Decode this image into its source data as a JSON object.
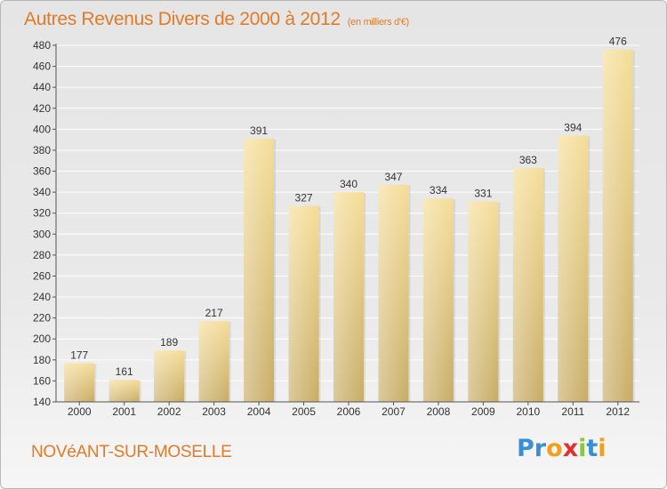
{
  "title": "Autres Revenus Divers de 2000 à 2012",
  "unit_label": "(en milliers d'€)",
  "location": "NOVéANT-SUR-MOSELLE",
  "logo": {
    "text": "Proxiti",
    "letters": [
      {
        "ch": "P",
        "color": "#3a8fd4"
      },
      {
        "ch": "r",
        "color": "#3a8fd4"
      },
      {
        "ch": "o",
        "color": "#f0a020"
      },
      {
        "ch": "x",
        "color": "#e03030"
      },
      {
        "ch": "i",
        "color": "#8cc63f"
      },
      {
        "ch": "t",
        "color": "#3a8fd4"
      },
      {
        "ch": "i",
        "color": "#f0a020"
      }
    ]
  },
  "colors": {
    "title": "#e07b2a",
    "bar_light": "#f5dd98",
    "bar_dark": "#c8ac66",
    "grid": "#ffffff",
    "axis": "#555555"
  },
  "chart_data": {
    "type": "bar",
    "categories": [
      "2000",
      "2001",
      "2002",
      "2003",
      "2004",
      "2005",
      "2006",
      "2007",
      "2008",
      "2009",
      "2010",
      "2011",
      "2012"
    ],
    "values": [
      177,
      161,
      189,
      217,
      391,
      327,
      340,
      347,
      334,
      331,
      363,
      394,
      476
    ],
    "title": "Autres Revenus Divers de 2000 à 2012",
    "xlabel": "",
    "ylabel": "",
    "ylim": [
      140,
      480
    ],
    "yticks": [
      140,
      160,
      180,
      200,
      220,
      240,
      260,
      280,
      300,
      320,
      340,
      360,
      380,
      400,
      420,
      440,
      460,
      480
    ],
    "grid": true,
    "data_labels": true
  }
}
